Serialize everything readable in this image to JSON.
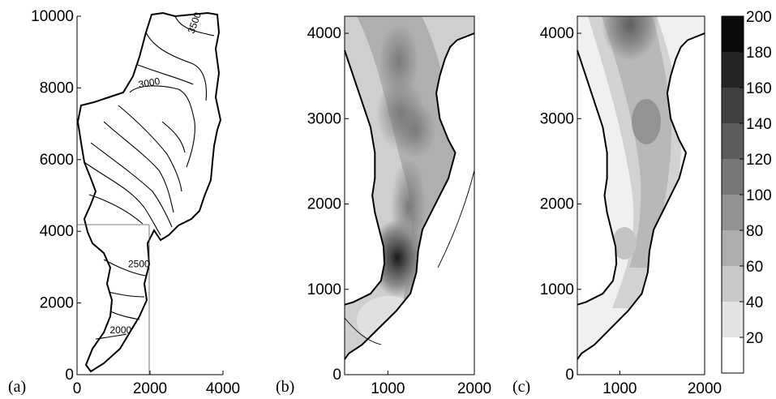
{
  "figure": {
    "panel_labels": [
      "(a)",
      "(b)",
      "(c)"
    ]
  },
  "chart_data": [
    {
      "type": "contour",
      "panel": "(a)",
      "title": "",
      "xlabel": "",
      "ylabel": "",
      "xlim": [
        0,
        4000
      ],
      "ylim": [
        0,
        10000
      ],
      "xticks": [
        "0",
        "2000",
        "4000"
      ],
      "yticks": [
        "0",
        "2000",
        "4000",
        "6000",
        "8000",
        "10000"
      ],
      "contour_labels": [
        "3500",
        "3000",
        "2500",
        "2000"
      ],
      "subdomain_lines": {
        "horizontal_y": 4200,
        "vertical_x": 2000
      }
    },
    {
      "type": "heatmap",
      "panel": "(b)",
      "title": "",
      "xlabel": "",
      "ylabel": "",
      "xlim": [
        500,
        2000
      ],
      "ylim": [
        0,
        4200
      ],
      "xticks": [
        "1000",
        "2000"
      ],
      "yticks": [
        "0",
        "1000",
        "2000",
        "3000",
        "4000"
      ],
      "hotspot": {
        "x": 1150,
        "y": 1400,
        "value": 180
      }
    },
    {
      "type": "heatmap",
      "panel": "(c)",
      "title": "",
      "xlabel": "",
      "ylabel": "",
      "xlim": [
        500,
        2000
      ],
      "ylim": [
        0,
        4200
      ],
      "xticks": [
        "1000",
        "2000"
      ],
      "yticks": [
        "0",
        "1000",
        "2000",
        "3000",
        "4000"
      ],
      "hotspot": {
        "x": 1100,
        "y": 4150,
        "value": 130
      }
    }
  ],
  "colorbar": {
    "min": 0,
    "max": 200,
    "step": 20,
    "labels": [
      "20",
      "40",
      "60",
      "80",
      "100",
      "120",
      "140",
      "160",
      "180",
      "200"
    ]
  }
}
